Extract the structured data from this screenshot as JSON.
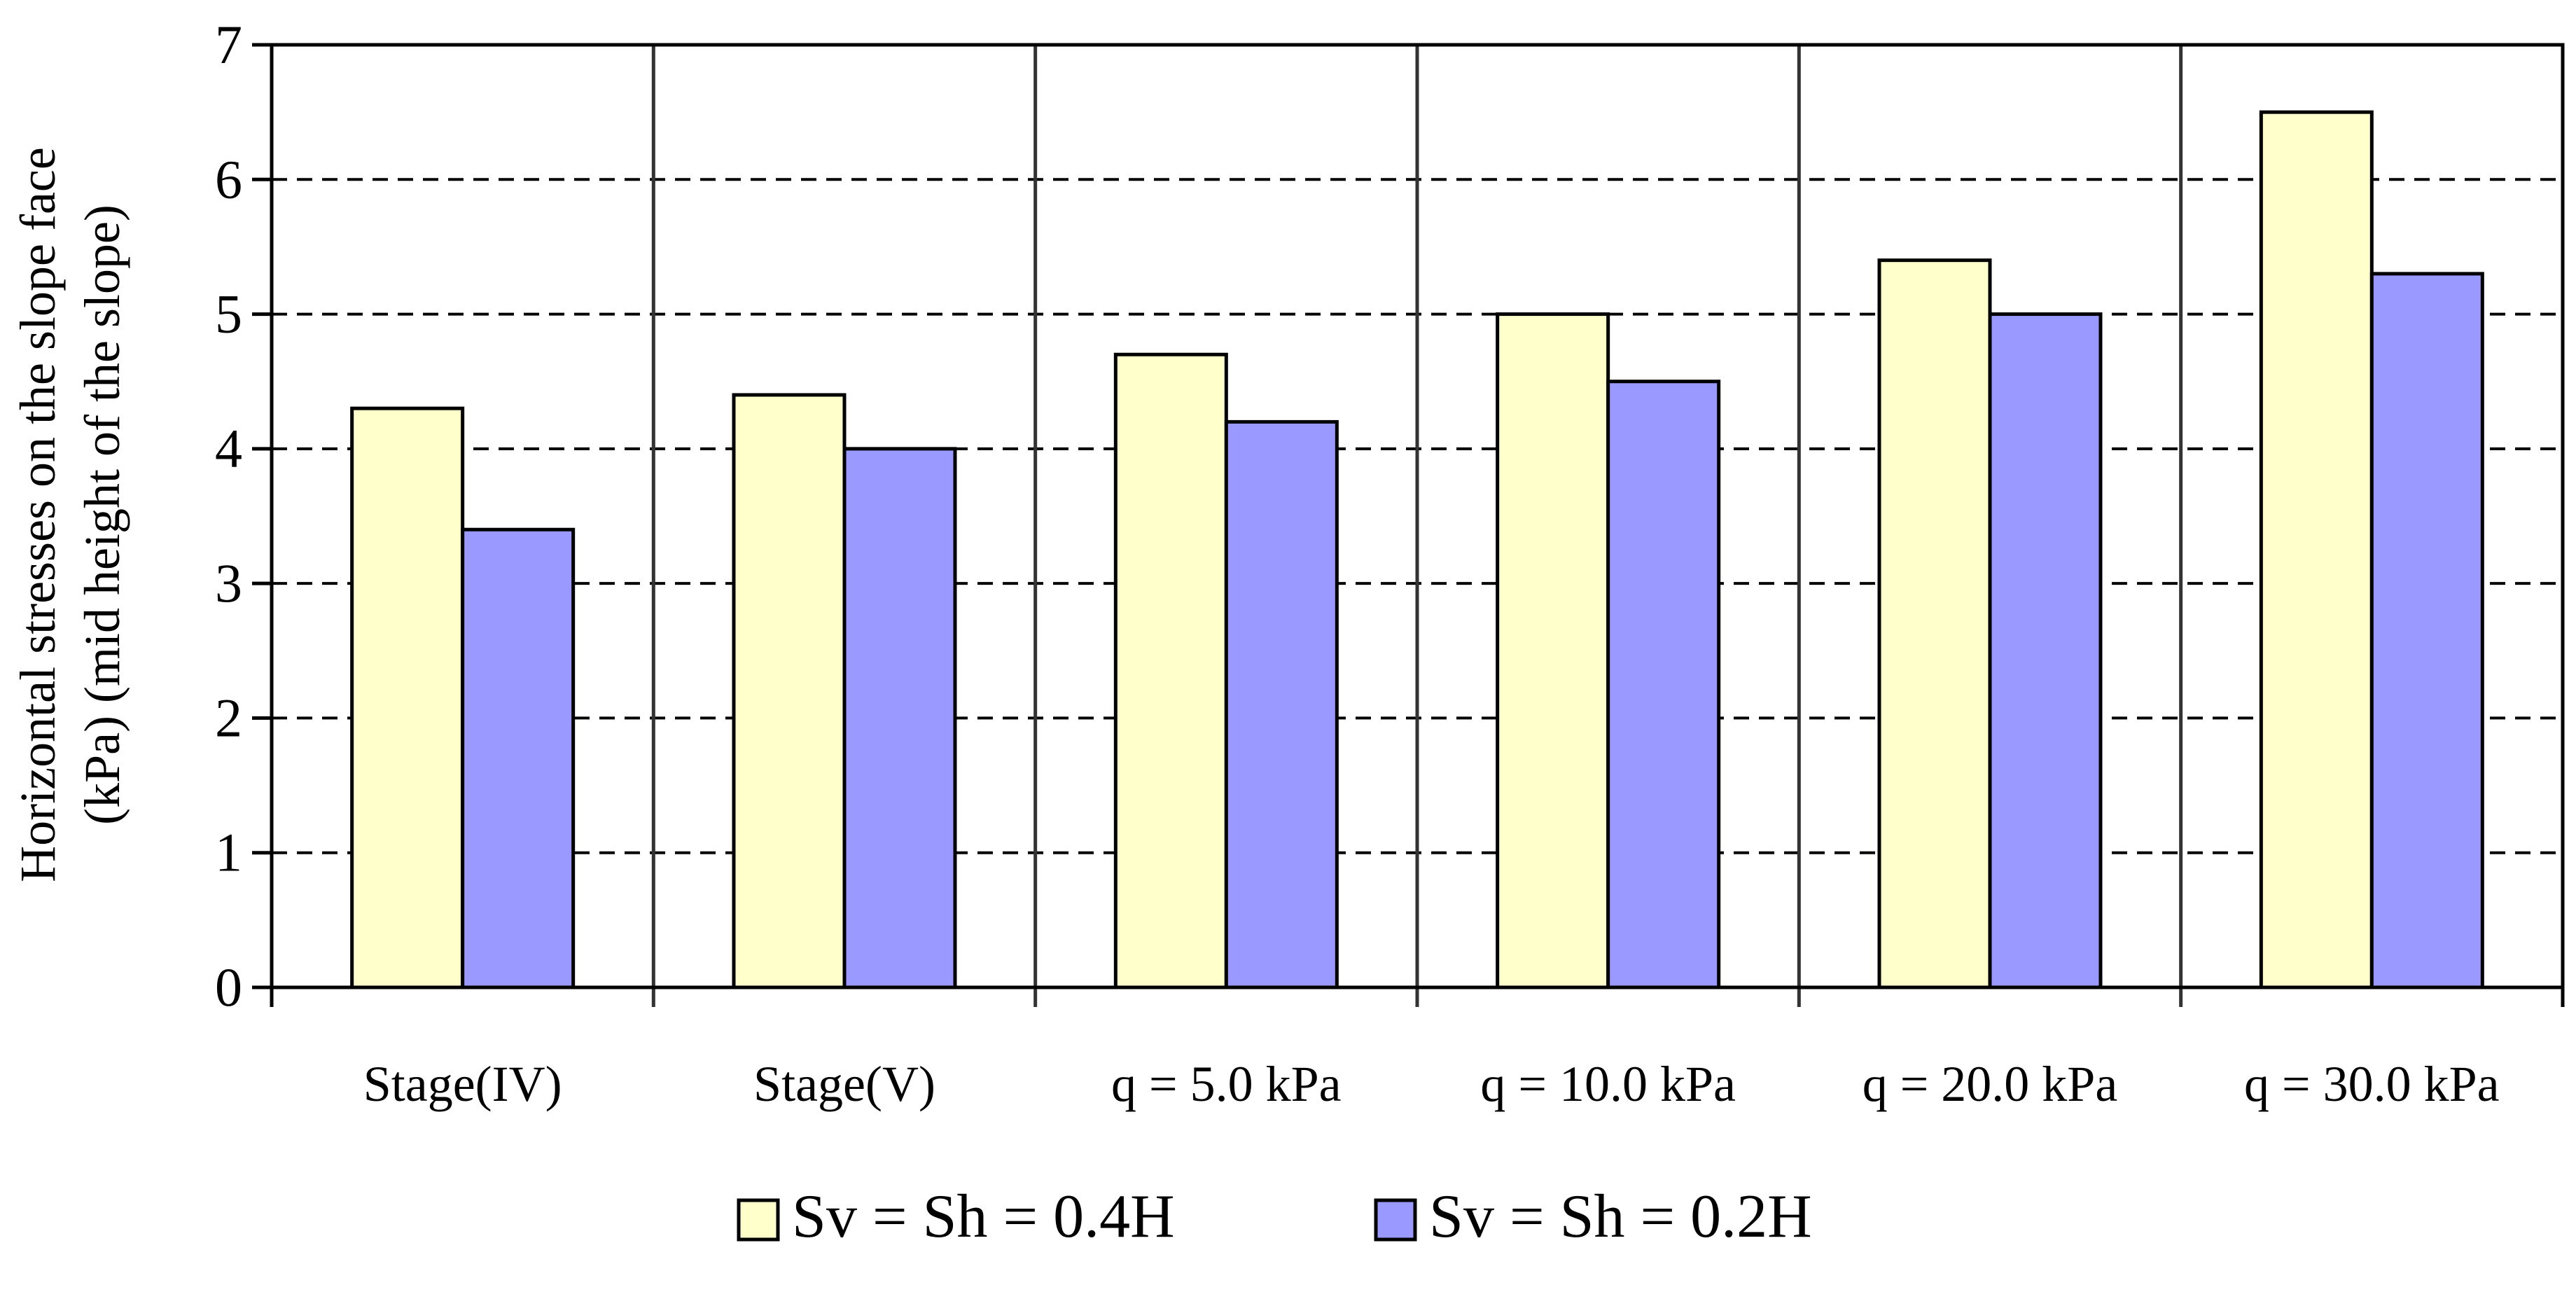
{
  "chart_data": {
    "type": "bar",
    "title": "",
    "xlabel": "",
    "ylabel_line1": "Horizontal stresses on the slope face",
    "ylabel_line2": "(kPa) (mid height of the slope)",
    "ylim": [
      0,
      7
    ],
    "yticks": [
      0,
      1,
      2,
      3,
      4,
      5,
      6,
      7
    ],
    "grid": "horizontal dashed",
    "legend_position": "bottom-center",
    "categories": [
      "Stage(IV)",
      "Stage(V)",
      "q = 5.0 kPa",
      "q = 10.0 kPa",
      "q = 20.0 kPa",
      "q = 30.0 kPa"
    ],
    "series": [
      {
        "name": "Sv = Sh = 0.4H",
        "color": "#ffffcc",
        "values": [
          4.3,
          4.4,
          4.7,
          5.0,
          5.4,
          6.5
        ]
      },
      {
        "name": "Sv = Sh = 0.2H",
        "color": "#9999ff",
        "values": [
          3.4,
          4.0,
          4.2,
          4.5,
          5.0,
          5.3
        ]
      }
    ]
  }
}
